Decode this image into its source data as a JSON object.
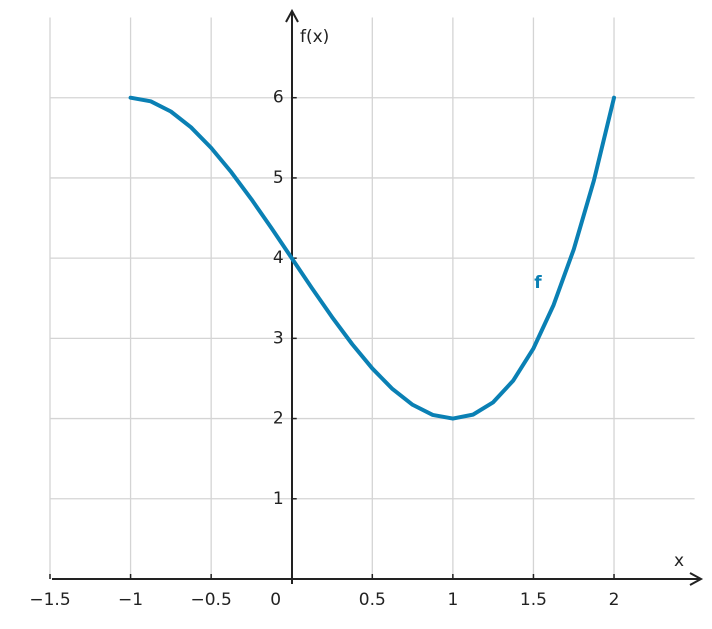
{
  "chart_data": {
    "type": "line",
    "x_label": "x",
    "y_label": "f(x)",
    "x": [
      -1,
      -0.875,
      -0.75,
      -0.625,
      -0.5,
      -0.375,
      -0.25,
      -0.125,
      0,
      0.125,
      0.25,
      0.375,
      0.5,
      0.625,
      0.75,
      0.875,
      1,
      1.125,
      1.25,
      1.375,
      1.5,
      1.625,
      1.75,
      1.875,
      2
    ],
    "series": [
      {
        "name": "f",
        "color": "#0a80b4",
        "values": [
          6,
          5.955,
          5.828,
          5.631,
          5.375,
          5.072,
          4.734,
          4.373,
          4,
          3.627,
          3.266,
          2.928,
          2.625,
          2.369,
          2.172,
          2.045,
          2,
          2.049,
          2.203,
          2.475,
          2.875,
          3.416,
          4.109,
          4.967,
          6
        ]
      }
    ],
    "xlim": [
      -1.5,
      2.5
    ],
    "ylim": [
      0,
      7
    ],
    "xticks": [
      {
        "value": -1.5,
        "label": "−1.5"
      },
      {
        "value": -1,
        "label": "−1"
      },
      {
        "value": -0.5,
        "label": "−0.5"
      },
      0,
      0.5,
      1,
      1.5,
      2
    ],
    "yticks": [
      1,
      2,
      3,
      4,
      5,
      6
    ],
    "grid": true
  }
}
